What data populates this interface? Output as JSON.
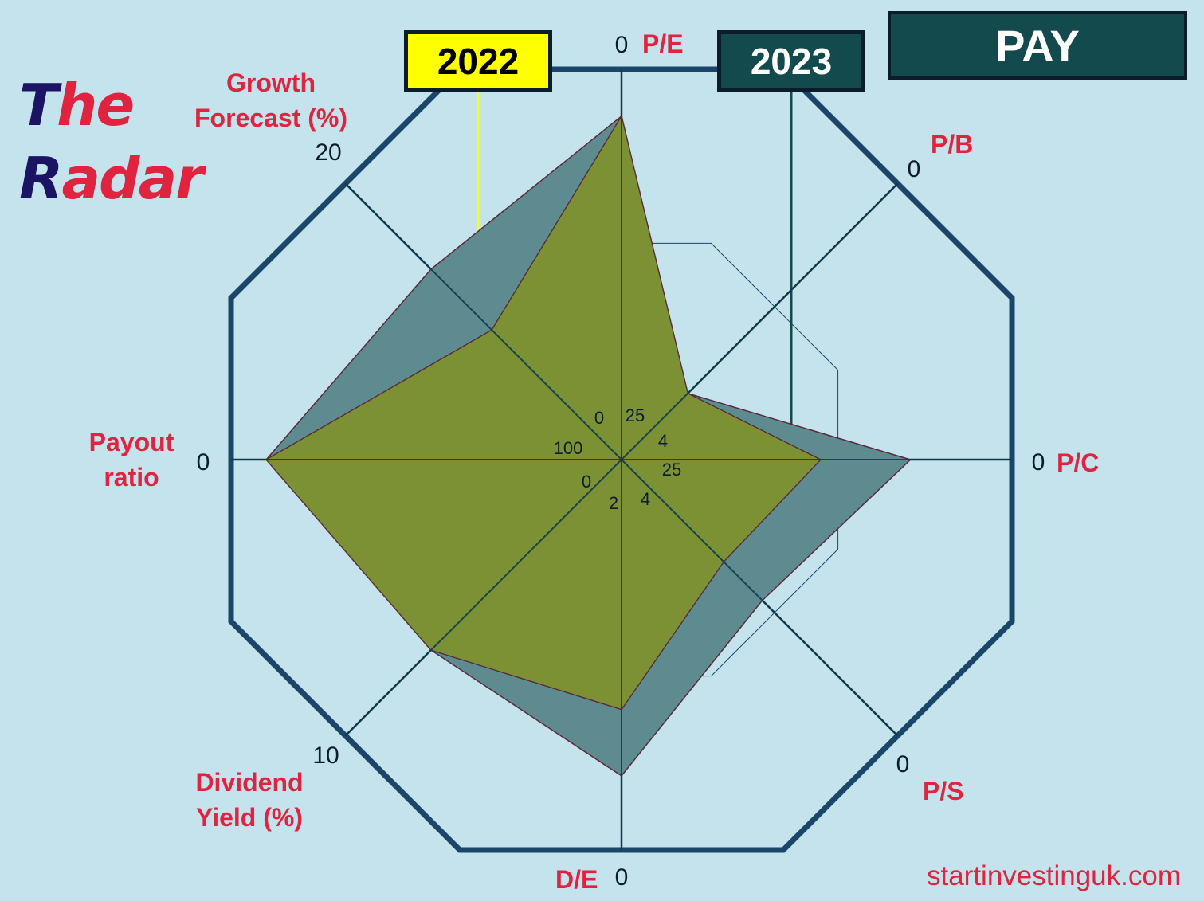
{
  "brand": {
    "logo_cap1": "T",
    "logo_rest1": "he",
    "logo_cap2": "R",
    "logo_rest2": "adar"
  },
  "ticker": "PAY",
  "legend": {
    "year_2022": "2022",
    "year_2023": "2023"
  },
  "footer": "startinvestinguk.com",
  "colors": {
    "background": "#c5e3ec",
    "frame": "#1b4569",
    "accent_red": "#e0233f",
    "series_2022": "#ffff00",
    "series_2023": "#5e8b8f",
    "overlap": "#7b9133",
    "ticker_box": "#134a4d"
  },
  "chart_data": {
    "type": "radar",
    "axes": [
      {
        "id": "pe",
        "label": [
          "P/E"
        ],
        "outer_tick": "0",
        "inner_tick": "25"
      },
      {
        "id": "pb",
        "label": [
          "P/B"
        ],
        "outer_tick": "0",
        "inner_tick": "4"
      },
      {
        "id": "pc",
        "label": [
          "P/C"
        ],
        "outer_tick": "0",
        "inner_tick": "25"
      },
      {
        "id": "ps",
        "label": [
          "P/S"
        ],
        "outer_tick": "0",
        "inner_tick": "4"
      },
      {
        "id": "de",
        "label": [
          "D/E"
        ],
        "outer_tick": "0",
        "inner_tick": "2"
      },
      {
        "id": "dy",
        "label": [
          "Dividend",
          "Yield (%)"
        ],
        "outer_tick": "10",
        "inner_tick": "0"
      },
      {
        "id": "po",
        "label": [
          "Payout",
          "ratio"
        ],
        "outer_tick": "0",
        "inner_tick": "100"
      },
      {
        "id": "gf",
        "label": [
          "Growth",
          "Forecast (%)"
        ],
        "outer_tick": "20",
        "inner_tick": "0"
      }
    ],
    "scale_note": "values expressed as fraction of radius (0 = centre, 1 = outer ring)",
    "series": [
      {
        "name": "2023",
        "values": [
          0.88,
          0.24,
          0.74,
          0.51,
          0.81,
          0.69,
          0.91,
          0.69
        ]
      },
      {
        "name": "2022",
        "values": [
          0.88,
          0.24,
          0.51,
          0.37,
          0.64,
          0.69,
          0.91,
          0.47
        ]
      }
    ]
  }
}
